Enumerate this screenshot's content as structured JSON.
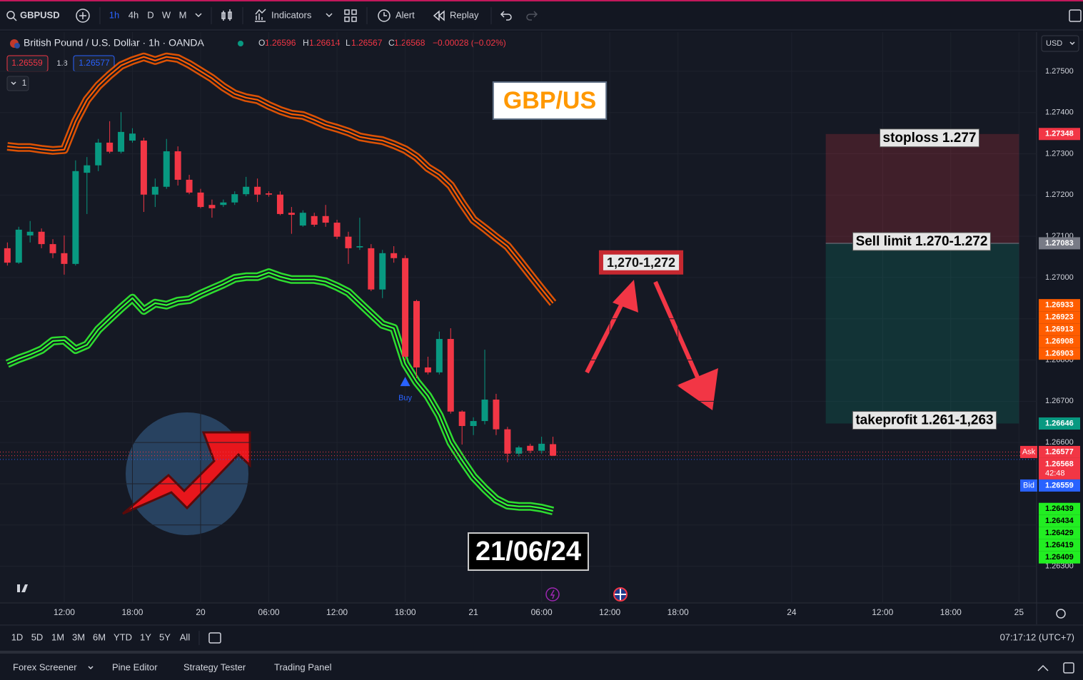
{
  "toolbar": {
    "symbol": "GBPUSD",
    "intervals": [
      "1h",
      "4h",
      "D",
      "W",
      "M"
    ],
    "indicators": "Indicators",
    "alert": "Alert",
    "replay": "Replay"
  },
  "legend": {
    "title": "British Pound / U.S. Dollar · 1h · OANDA",
    "ohlc": [
      {
        "key": "O",
        "value": "1.26596"
      },
      {
        "key": "H",
        "value": "1.26614"
      },
      {
        "key": "L",
        "value": "1.26567"
      },
      {
        "key": "C",
        "value": "1.26568"
      }
    ],
    "change": "−0.00028 (−0.02%)",
    "sell": "1.26559",
    "spread": "1.8",
    "buy": "1.26577",
    "indicators_collapsed": "1"
  },
  "currency": "USD",
  "chart_data": {
    "type": "candlestick",
    "x": [
      -5,
      -4,
      -3,
      -2,
      -1,
      0,
      1,
      2,
      3,
      4,
      5,
      6,
      7,
      8,
      9,
      10,
      11,
      12,
      13,
      14,
      15,
      16,
      17,
      18,
      19,
      20,
      21,
      22,
      23,
      24,
      25,
      26,
      27,
      28,
      29,
      30,
      31,
      32,
      33,
      34,
      35,
      36,
      37,
      38,
      39,
      40,
      41,
      42,
      43
    ],
    "open": [
      1.27071,
      1.27036,
      1.27102,
      1.27111,
      1.27081,
      1.27059,
      1.27033,
      1.27254,
      1.27272,
      1.27327,
      1.27305,
      1.27332,
      1.27332,
      1.27201,
      1.2722,
      1.27306,
      1.27237,
      1.27206,
      1.27176,
      1.27176,
      1.27182,
      1.27202,
      1.2722,
      1.27204,
      1.27201,
      1.27157,
      1.27126,
      1.27149,
      1.27149,
      1.27133,
      1.27099,
      1.27073,
      1.27071,
      1.26971,
      1.27059,
      1.27047,
      1.26943,
      1.26782,
      1.2677,
      1.26851,
      1.26675,
      1.2664,
      1.26652,
      1.26704,
      1.26632,
      1.26573,
      1.26592,
      1.2658,
      1.26596
    ],
    "high": [
      1.27085,
      1.27123,
      1.27137,
      1.27119,
      1.27093,
      1.27102,
      1.27284,
      1.27292,
      1.27336,
      1.27379,
      1.27401,
      1.27362,
      1.27339,
      1.2724,
      1.27336,
      1.27318,
      1.27249,
      1.27215,
      1.27189,
      1.27189,
      1.27209,
      1.27244,
      1.2724,
      1.27209,
      1.27209,
      1.27171,
      1.27163,
      1.27157,
      1.27176,
      1.2714,
      1.27111,
      1.27145,
      1.27081,
      1.27067,
      1.27076,
      1.27054,
      1.26946,
      1.26808,
      1.26869,
      1.26877,
      1.26678,
      1.26661,
      1.26825,
      1.26718,
      1.26638,
      1.26592,
      1.26597,
      1.26614,
      1.26614
    ],
    "low": [
      1.27029,
      1.27033,
      1.27085,
      1.27071,
      1.27047,
      1.27007,
      1.27029,
      1.27154,
      1.27258,
      1.27301,
      1.27301,
      1.27327,
      1.27159,
      1.27171,
      1.27215,
      1.27223,
      1.27202,
      1.27168,
      1.27145,
      1.27171,
      1.27176,
      1.27197,
      1.27183,
      1.27196,
      1.27151,
      1.27106,
      1.27123,
      1.27123,
      1.27123,
      1.27093,
      1.27033,
      1.27067,
      1.26967,
      1.2695,
      1.27036,
      1.26799,
      1.26756,
      1.26765,
      1.26765,
      1.2667,
      1.26595,
      1.26618,
      1.26644,
      1.26618,
      1.26552,
      1.26566,
      1.26574,
      1.26573,
      1.26567
    ],
    "close": [
      1.27036,
      1.27116,
      1.27111,
      1.27081,
      1.27059,
      1.27033,
      1.27258,
      1.27272,
      1.27327,
      1.27305,
      1.27353,
      1.27349,
      1.27201,
      1.2722,
      1.27306,
      1.27237,
      1.27206,
      1.27171,
      1.27168,
      1.27182,
      1.27202,
      1.2722,
      1.27201,
      1.27201,
      1.27154,
      1.27152,
      1.27157,
      1.27128,
      1.27133,
      1.27099,
      1.27071,
      1.27076,
      1.26971,
      1.27059,
      1.27047,
      1.26808,
      1.26782,
      1.2677,
      1.26851,
      1.26675,
      1.2664,
      1.26652,
      1.26704,
      1.26632,
      1.26573,
      1.26588,
      1.2658,
      1.26597,
      1.26568
    ],
    "up_color": "#089981",
    "down_color": "#f23645",
    "series": [
      {
        "color": "#ff5d00",
        "values": [
          1.27318,
          1.27315,
          1.27315,
          1.27311,
          1.27308,
          1.2731,
          1.27379,
          1.27431,
          1.27465,
          1.27491,
          1.27514,
          1.27526,
          1.27535,
          1.27526,
          1.27535,
          1.27531,
          1.27517,
          1.275,
          1.27483,
          1.27462,
          1.27445,
          1.27436,
          1.27431,
          1.27417,
          1.27405,
          1.27396,
          1.27393,
          1.27382,
          1.2737,
          1.27362,
          1.27353,
          1.27341,
          1.27336,
          1.27332,
          1.27322,
          1.2731,
          1.27292,
          1.27266,
          1.27249,
          1.27223,
          1.2718,
          1.2714,
          1.27119,
          1.27097,
          1.27076,
          1.27042,
          1.27007,
          1.26972,
          1.26938
        ]
      },
      {
        "color": "#33ff33",
        "values": [
          1.26791,
          1.26803,
          1.26813,
          1.26825,
          1.26846,
          1.26848,
          1.26825,
          1.26837,
          1.26874,
          1.269,
          1.26926,
          1.2695,
          1.2692,
          1.26938,
          1.26933,
          1.26943,
          1.26946,
          1.2696,
          1.26972,
          1.26984,
          1.26998,
          1.27002,
          1.27002,
          1.27012,
          1.27002,
          1.26995,
          1.26995,
          1.26995,
          1.2699,
          1.26978,
          1.26964,
          1.26938,
          1.26912,
          1.26886,
          1.26877,
          1.26791,
          1.26747,
          1.26713,
          1.26666,
          1.266,
          1.26557,
          1.26517,
          1.26488,
          1.26462,
          1.26448,
          1.26445,
          1.26445,
          1.26441,
          1.26434
        ]
      }
    ],
    "xlim": [
      -5.65,
      85.55
    ],
    "xticks": [
      {
        "value": 0,
        "label": "12:00"
      },
      {
        "value": 6,
        "label": "18:00"
      },
      {
        "value": 12,
        "label": "20"
      },
      {
        "value": 18,
        "label": "06:00"
      },
      {
        "value": 24,
        "label": "12:00"
      },
      {
        "value": 30,
        "label": "18:00"
      },
      {
        "value": 36,
        "label": "21"
      },
      {
        "value": 42,
        "label": "06:00"
      },
      {
        "value": 48,
        "label": "12:00"
      },
      {
        "value": 54,
        "label": "18:00"
      },
      {
        "value": 64,
        "label": "24"
      },
      {
        "value": 72,
        "label": "12:00"
      },
      {
        "value": 78,
        "label": "18:00"
      },
      {
        "value": 84,
        "label": "25"
      }
    ],
    "ylim": [
      1.26211,
      1.27595
    ],
    "yticks": [
      {
        "value": 1.263,
        "label": "1.26300"
      },
      {
        "value": 1.264,
        "label": "1.26400"
      },
      {
        "value": 1.265,
        "label": "1.26500"
      },
      {
        "value": 1.266,
        "label": "1.26600"
      },
      {
        "value": 1.267,
        "label": "1.26700"
      },
      {
        "value": 1.268,
        "label": "1.26800"
      },
      {
        "value": 1.269,
        "label": "1.26900"
      },
      {
        "value": 1.27,
        "label": "1.27000"
      },
      {
        "value": 1.271,
        "label": "1.27100"
      },
      {
        "value": 1.272,
        "label": "1.27200"
      },
      {
        "value": 1.273,
        "label": "1.27300"
      },
      {
        "value": 1.274,
        "label": "1.27400"
      },
      {
        "value": 1.275,
        "label": "1.27500"
      }
    ],
    "grid": true,
    "annotations": [
      {
        "text": "GBP/US"
      },
      {
        "text": "1,270-1,272"
      },
      {
        "text": "21/06/24"
      }
    ],
    "position": {
      "x": [
        67,
        84
      ],
      "stop": 1.27348,
      "entry": 1.27083,
      "target": 1.26646,
      "labels": [
        "stoploss 1.277",
        "Sell limit 1.270-1.272",
        "takeprofit 1.261-1,263"
      ]
    },
    "signals": [
      {
        "x": 30,
        "label": "Buy"
      }
    ],
    "price_labels": [
      {
        "value": 1.27348,
        "color": "#f23645"
      },
      {
        "value": 1.27083,
        "color": "#787b86"
      },
      {
        "value": 1.26933,
        "color": "#ff5d00"
      },
      {
        "value": 1.26923,
        "color": "#ff5d00"
      },
      {
        "value": 1.26913,
        "color": "#ff5d00"
      },
      {
        "value": 1.26908,
        "color": "#ff5d00"
      },
      {
        "value": 1.26903,
        "color": "#ff5d00"
      },
      {
        "value": 1.26646,
        "color": "#089981"
      },
      {
        "value": 1.26577,
        "color": "#f23645",
        "tag": "Ask"
      },
      {
        "value": 1.26568,
        "color": "#f23645",
        "sub": "42:48"
      },
      {
        "value": 1.26559,
        "color": "#2962ff",
        "tag": "Bid"
      },
      {
        "value": 1.26439,
        "color": "#22ee22",
        "text_color": "#000000"
      },
      {
        "value": 1.26434,
        "color": "#22ee22",
        "text_color": "#000000"
      },
      {
        "value": 1.26429,
        "color": "#22ee22",
        "text_color": "#000000"
      },
      {
        "value": 1.26419,
        "color": "#22ee22",
        "text_color": "#000000"
      },
      {
        "value": 1.26409,
        "color": "#22ee22",
        "text_color": "#000000"
      }
    ]
  },
  "bottom_bar": {
    "ranges": [
      "1D",
      "5D",
      "1M",
      "3M",
      "6M",
      "YTD",
      "1Y",
      "5Y",
      "All"
    ],
    "clock": "07:17:12 (UTC+7)"
  },
  "panel": {
    "tabs": [
      "Forex Screener",
      "Pine Editor",
      "Strategy Tester",
      "Trading Panel"
    ]
  }
}
